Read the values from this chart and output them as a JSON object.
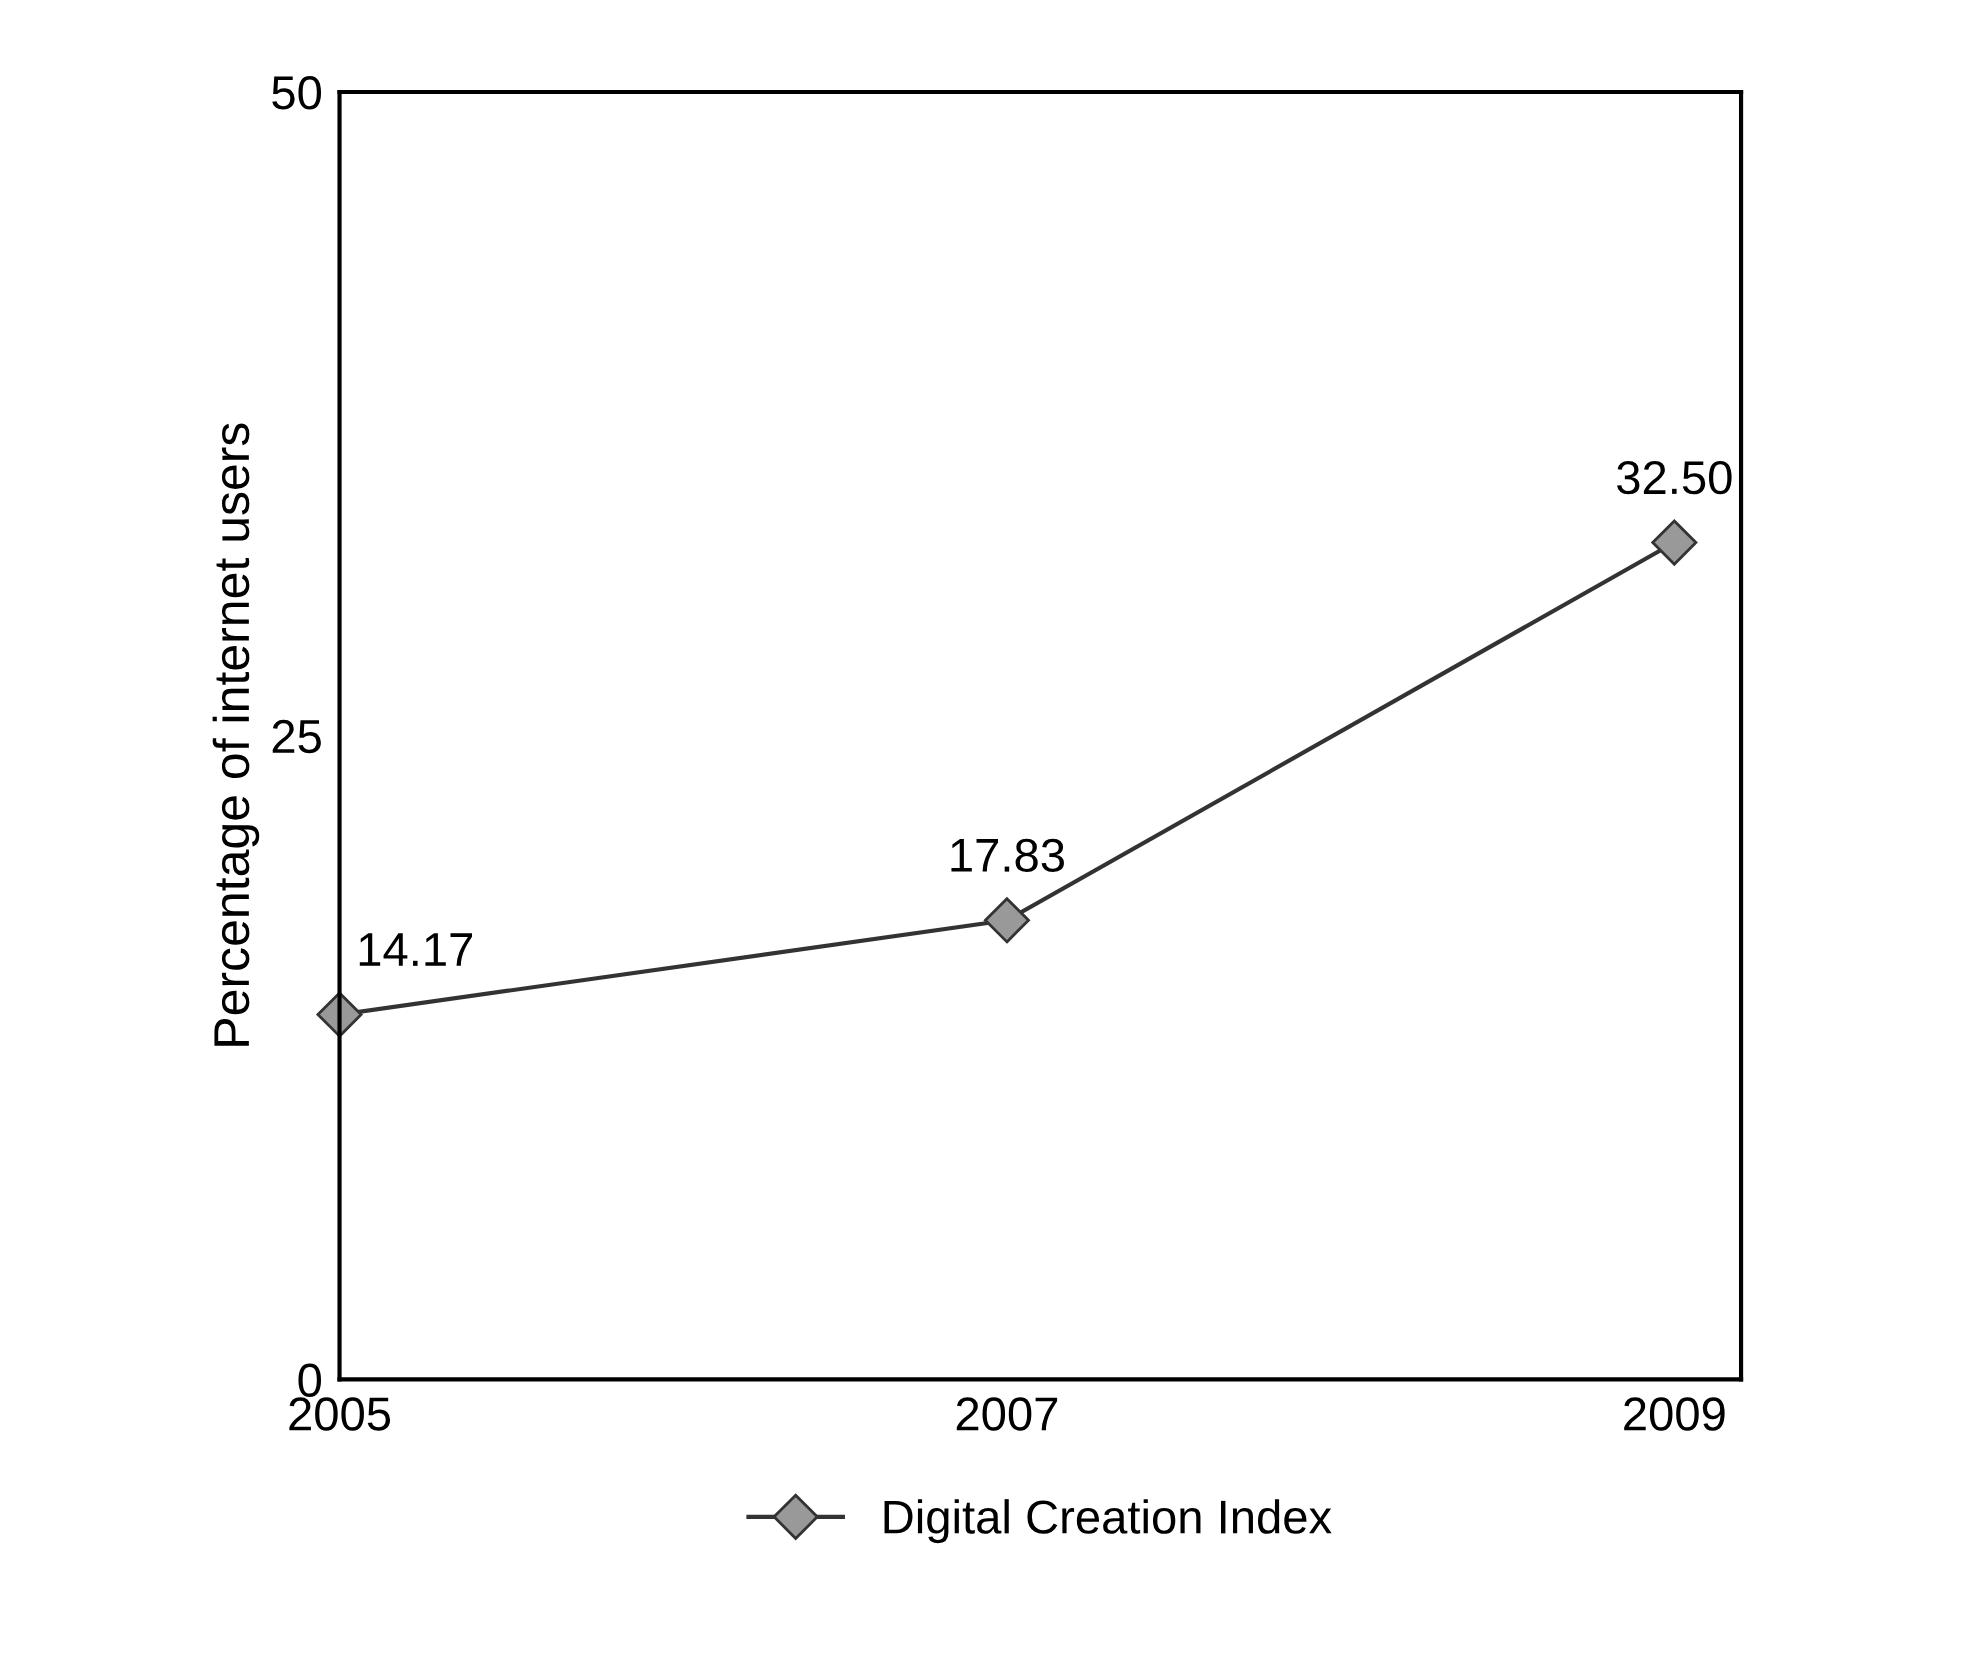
{
  "chart_data": {
    "type": "line",
    "ylabel": "Percentage of internet users",
    "x": [
      2005,
      2007,
      2009
    ],
    "series": [
      {
        "name": "Digital Creation Index",
        "color": "#333333",
        "values": [
          14.17,
          17.83,
          32.5
        ],
        "value_labels": [
          "14.17",
          "17.83",
          "32.50"
        ]
      }
    ],
    "xlim": [
      2005,
      2009.2
    ],
    "xticks": [
      2005,
      2007,
      2009
    ],
    "ylim": [
      0,
      50
    ],
    "yticks": [
      0,
      25,
      50
    ],
    "marker": "diamond",
    "line_style": "solid",
    "grid": false,
    "legend": "bottom"
  }
}
